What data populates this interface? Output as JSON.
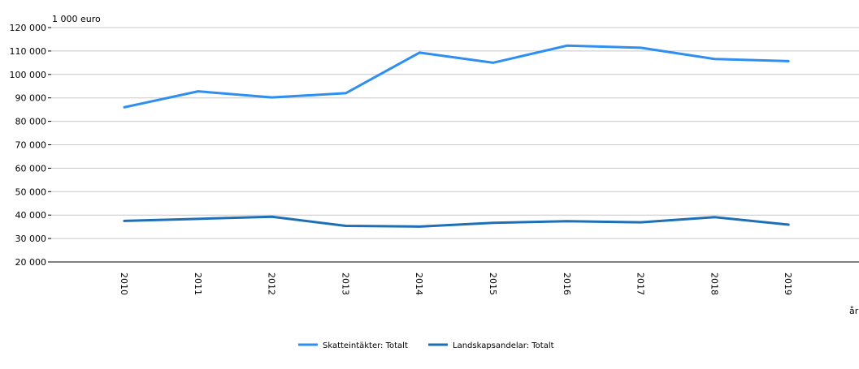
{
  "chart_data": {
    "type": "line",
    "title": "",
    "y_unit_label": "1 000 euro",
    "xlabel": "år",
    "ylabel": "",
    "ylim": [
      20000,
      120000
    ],
    "y_ticks": [
      20000,
      30000,
      40000,
      50000,
      60000,
      70000,
      80000,
      90000,
      100000,
      110000,
      120000
    ],
    "y_tick_labels": [
      "20 000",
      "30 000",
      "40 000",
      "50 000",
      "60 000",
      "70 000",
      "80 000",
      "90 000",
      "100 000",
      "110 000",
      "120 000"
    ],
    "categories": [
      "2010",
      "2011",
      "2012",
      "2013",
      "2014",
      "2015",
      "2016",
      "2017",
      "2018",
      "2019"
    ],
    "grid": true,
    "legend_position": "bottom",
    "series": [
      {
        "name": "Skatteintäkter: Totalt",
        "color": "#2e8ff0",
        "values": [
          86000,
          92800,
          90200,
          92000,
          109300,
          105000,
          112300,
          111400,
          106600,
          105700
        ]
      },
      {
        "name": "Landskapsandelar: Totalt",
        "color": "#1f6fb5",
        "values": [
          37500,
          38400,
          39300,
          35400,
          35100,
          36700,
          37400,
          36900,
          39100,
          35900
        ]
      }
    ]
  }
}
